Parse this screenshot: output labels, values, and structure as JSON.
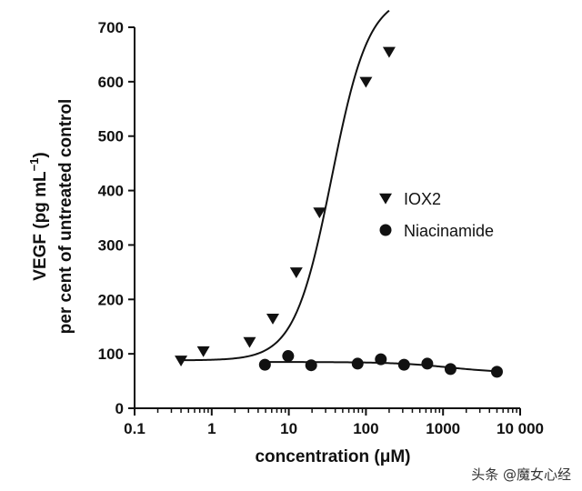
{
  "chart_data": {
    "type": "scatter",
    "x_scale": "log",
    "xlim": [
      0.1,
      10000
    ],
    "ylim": [
      0,
      700
    ],
    "grid": false,
    "legend_position": "right",
    "x_ticks": [
      0.1,
      1,
      10,
      100,
      1000,
      10000
    ],
    "x_tick_labels": [
      "0.1",
      "1",
      "10",
      "100",
      "1000",
      "10 000"
    ],
    "y_ticks": [
      0,
      100,
      200,
      300,
      400,
      500,
      600,
      700
    ],
    "y_tick_labels": [
      "0",
      "100",
      "200",
      "300",
      "400",
      "500",
      "600",
      "700"
    ],
    "xlabel": "concentration (μM)",
    "ylabel": {
      "main": "VEGF (pg mL",
      "superscript": "−1",
      "close": ")",
      "line2": "per cent of untreated control"
    },
    "series": [
      {
        "name": "IOX2",
        "marker": "triangle-down",
        "color": "#111111",
        "x": [
          0.4,
          0.78,
          3.1,
          6.2,
          12.5,
          25,
          100,
          200
        ],
        "y": [
          88,
          105,
          122,
          165,
          250,
          360,
          600,
          655
        ],
        "fit": {
          "bottom": 88,
          "top": 760,
          "ec50": 36,
          "hill": 1.8
        }
      },
      {
        "name": "Niacinamide",
        "marker": "circle",
        "color": "#111111",
        "x": [
          4.9,
          9.8,
          19.5,
          78,
          156,
          312,
          625,
          1250,
          5000
        ],
        "y": [
          80,
          96,
          79,
          82,
          90,
          80,
          82,
          72,
          67
        ],
        "fit": {
          "top": 85,
          "bottom": 65,
          "ec50": 1200,
          "hill": 1.2
        }
      }
    ]
  },
  "watermark": "头条 @魔女心经"
}
